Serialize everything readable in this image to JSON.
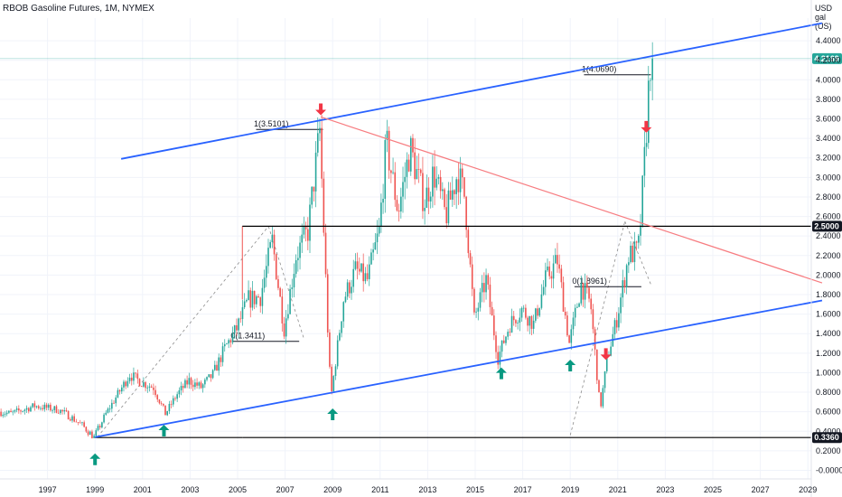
{
  "header": {
    "title": "RBOB Gasoline Futures, 1M, NYMEX",
    "unit_line1": "USD",
    "unit_line2": "gal (US)"
  },
  "chart_data": {
    "type": "candlestick",
    "title": "RBOB Gasoline Futures, 1M, NYMEX",
    "ylabel": "USD / gal (US)",
    "ylim": [
      -0.1,
      4.7
    ],
    "xlim": [
      1995.0,
      2029.6
    ],
    "x_ticks": [
      "1997",
      "1999",
      "2001",
      "2003",
      "2005",
      "2007",
      "2009",
      "2011",
      "2013",
      "2015",
      "2017",
      "2019",
      "2021",
      "2023",
      "2025",
      "2027",
      "2029"
    ],
    "y_ticks": [
      "-0.0000",
      "0.2000",
      "0.4000",
      "0.6000",
      "0.8000",
      "1.0000",
      "1.2000",
      "1.4000",
      "1.6000",
      "1.8000",
      "2.0000",
      "2.2000",
      "2.4000",
      "2.6000",
      "2.8000",
      "3.0000",
      "3.2000",
      "3.4000",
      "3.6000",
      "3.8000",
      "4.0000",
      "4.2000",
      "4.4000"
    ],
    "price_path": [
      [
        1995.0,
        0.6
      ],
      [
        1995.5,
        0.58
      ],
      [
        1996.0,
        0.62
      ],
      [
        1996.5,
        0.66
      ],
      [
        1997.0,
        0.64
      ],
      [
        1997.5,
        0.62
      ],
      [
        1998.0,
        0.55
      ],
      [
        1998.5,
        0.46
      ],
      [
        1999.0,
        0.34
      ],
      [
        1999.5,
        0.58
      ],
      [
        2000.0,
        0.78
      ],
      [
        2000.5,
        0.98
      ],
      [
        2001.0,
        0.9
      ],
      [
        2001.5,
        0.85
      ],
      [
        2002.0,
        0.58
      ],
      [
        2002.5,
        0.78
      ],
      [
        2003.0,
        0.92
      ],
      [
        2003.5,
        0.85
      ],
      [
        2004.0,
        0.98
      ],
      [
        2004.5,
        1.25
      ],
      [
        2005.0,
        1.45
      ],
      [
        2005.5,
        1.75
      ],
      [
        2006.0,
        1.78
      ],
      [
        2006.5,
        2.35
      ],
      [
        2007.0,
        1.45
      ],
      [
        2007.5,
        2.2
      ],
      [
        2008.0,
        2.45
      ],
      [
        2008.5,
        3.48
      ],
      [
        2008.9,
        1.05
      ],
      [
        2009.0,
        0.8
      ],
      [
        2009.5,
        1.75
      ],
      [
        2010.0,
        2.05
      ],
      [
        2010.5,
        1.95
      ],
      [
        2011.0,
        2.45
      ],
      [
        2011.3,
        3.35
      ],
      [
        2011.8,
        2.65
      ],
      [
        2012.3,
        3.3
      ],
      [
        2012.9,
        2.75
      ],
      [
        2013.3,
        3.05
      ],
      [
        2013.8,
        2.6
      ],
      [
        2014.3,
        3.05
      ],
      [
        2014.6,
        2.8
      ],
      [
        2015.0,
        1.55
      ],
      [
        2015.5,
        1.95
      ],
      [
        2016.0,
        1.15
      ],
      [
        2016.5,
        1.5
      ],
      [
        2017.0,
        1.65
      ],
      [
        2017.5,
        1.5
      ],
      [
        2018.0,
        1.95
      ],
      [
        2018.5,
        2.15
      ],
      [
        2019.0,
        1.3
      ],
      [
        2019.5,
        1.9
      ],
      [
        2019.9,
        1.7
      ],
      [
        2020.3,
        0.62
      ],
      [
        2020.6,
        1.15
      ],
      [
        2021.0,
        1.55
      ],
      [
        2021.5,
        2.2
      ],
      [
        2021.9,
        2.25
      ],
      [
        2022.0,
        2.55
      ],
      [
        2022.2,
        3.3
      ],
      [
        2022.35,
        3.95
      ],
      [
        2022.42,
        4.22
      ]
    ],
    "last_price": "4.2169",
    "levels": [
      {
        "name": "Resistance 2.5000",
        "value": 2.5,
        "label": "2.5000"
      },
      {
        "name": "Support 0.3360",
        "value": 0.336,
        "label": "0.3360"
      }
    ],
    "trendlines": [
      {
        "name": "upper channel",
        "color": "#2962ff",
        "x": [
          2000.1,
          2029.6
        ],
        "y": [
          3.19,
          4.58
        ]
      },
      {
        "name": "lower channel",
        "color": "#2962ff",
        "x": [
          1999.0,
          2029.6
        ],
        "y": [
          0.34,
          1.74
        ]
      },
      {
        "name": "descending resistance",
        "color": "#f77c80",
        "x": [
          2008.5,
          2029.6
        ],
        "y": [
          3.62,
          1.92
        ]
      }
    ],
    "fib_annotations": [
      {
        "label": "1(3.5101)",
        "x": 2007.3,
        "y": 3.51
      },
      {
        "label": "0(1.3411)",
        "x": 2006.3,
        "y": 1.34
      },
      {
        "label": "1(4.0690)",
        "x": 2021.1,
        "y": 4.07
      },
      {
        "label": "0(1.8961)",
        "x": 2020.7,
        "y": 1.9
      }
    ],
    "up_arrows": [
      1999.0,
      2001.9,
      2009.0,
      2016.1,
      2019.0
    ],
    "down_arrows": [
      2008.5,
      2020.5,
      2022.2
    ],
    "colors": {
      "up": "#26a69a",
      "down": "#ef5350",
      "channel": "#2962ff",
      "resistance": "#f77c80",
      "level": "#000000"
    }
  }
}
